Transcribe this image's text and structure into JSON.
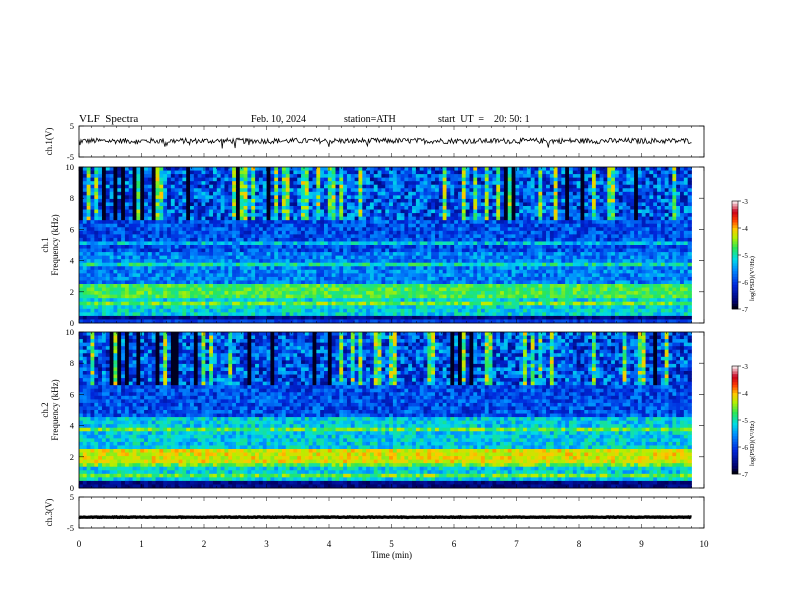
{
  "header": {
    "title": "VLF  Spectra",
    "date": "Feb. 10, 2024",
    "station": "station=ATH",
    "start": "start  UT  =    20: 50: 1"
  },
  "chart_data": [
    {
      "type": "line",
      "panel": "ch1-waveform",
      "ylabel": "ch.1(V)",
      "ylim": [
        -5,
        5
      ],
      "yticks": [
        "5",
        "-5"
      ],
      "x_range_min": [
        0,
        9.8
      ],
      "series": [
        {
          "values_note": "",
          "level": 0.2,
          "noise": 0.9
        }
      ]
    },
    {
      "type": "heatmap",
      "panel": "ch1-spectrogram",
      "ylabel_top": "ch.1",
      "ylabel": "Frequency  (kHz)",
      "ylim": [
        0,
        10
      ],
      "yticks": [
        "0",
        "2",
        "4",
        "6",
        "8",
        "10"
      ],
      "x_range_min": [
        0,
        9.8
      ],
      "colorbar": {
        "label": "log(PSD)(V²/Hz)",
        "range": [
          -7,
          -3
        ],
        "ticks": [
          "-3",
          "-4",
          "-5",
          "-6",
          "-7"
        ]
      }
    },
    {
      "type": "heatmap",
      "panel": "ch2-spectrogram",
      "ylabel_top": "ch.2",
      "ylabel": "Frequency  (kHz)",
      "ylim": [
        0,
        10
      ],
      "yticks": [
        "0",
        "2",
        "4",
        "6",
        "8",
        "10"
      ],
      "x_range_min": [
        0,
        9.8
      ],
      "colorbar": {
        "label": "log(PSD)(V²/Hz)",
        "range": [
          -7,
          -3
        ],
        "ticks": [
          "-3",
          "-4",
          "-5",
          "-6",
          "-7"
        ]
      }
    },
    {
      "type": "line",
      "panel": "ch3-waveform",
      "ylabel": "ch.3(V)",
      "ylim": [
        -5,
        5
      ],
      "yticks": [
        "5",
        "-5"
      ],
      "x_range_min": [
        0,
        9.8
      ],
      "series": [
        {
          "values_note": "",
          "level": -1.5,
          "noise": 0.1
        }
      ]
    }
  ],
  "xaxis": {
    "label": "Time  (min)",
    "ticks": [
      "0",
      "1",
      "2",
      "3",
      "4",
      "5",
      "6",
      "7",
      "8",
      "9",
      "10"
    ],
    "xlim": [
      0,
      10
    ]
  }
}
